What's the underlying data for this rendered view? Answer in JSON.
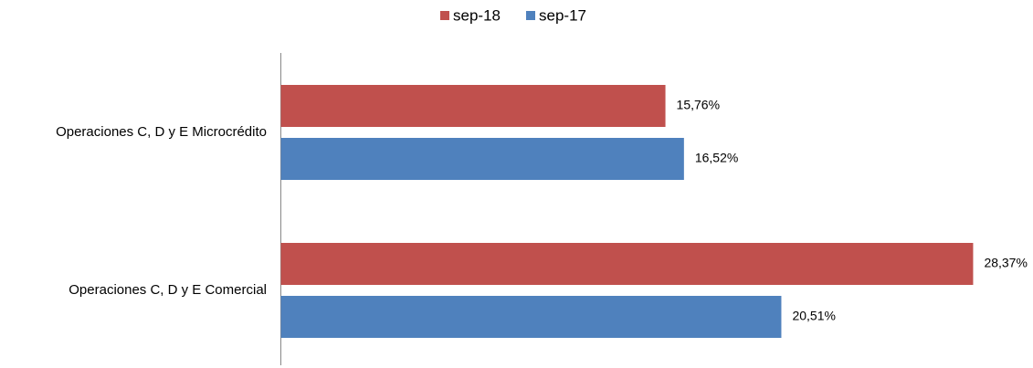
{
  "chart_data": {
    "type": "hbar",
    "categories": [
      "Operaciones C, D y E Microcrédito",
      "Operaciones C, D y E Comercial"
    ],
    "series": [
      {
        "name": "sep-18",
        "color": "#c0504d",
        "values": [
          15.76,
          28.37
        ],
        "value_labels": [
          "15,76%",
          "28,37%"
        ]
      },
      {
        "name": "sep-17",
        "color": "#4f81bd",
        "values": [
          16.52,
          20.51
        ],
        "value_labels": [
          "16,52%",
          "20,51%"
        ]
      }
    ],
    "xlim": [
      0,
      30
    ],
    "legend": "top"
  }
}
